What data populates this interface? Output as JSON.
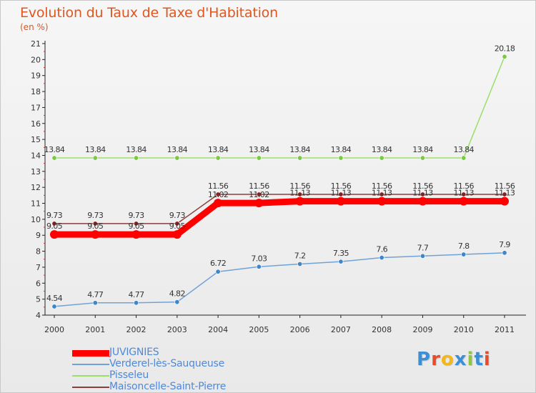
{
  "title": "Evolution du Taux de Taxe d'Habitation",
  "unit": "(en %)",
  "logo": "Proxiti",
  "chart_data": {
    "type": "line",
    "categories": [
      "2000",
      "2001",
      "2002",
      "2003",
      "2004",
      "2005",
      "2006",
      "2007",
      "2008",
      "2009",
      "2010",
      "2011"
    ],
    "ylim": [
      4,
      21
    ],
    "yticks": [
      4,
      5,
      6,
      7,
      8,
      9,
      10,
      11,
      12,
      13,
      14,
      15,
      16,
      17,
      18,
      19,
      20,
      21
    ],
    "grid": false,
    "legend_position": "bottom-left",
    "series": [
      {
        "name": "JUVIGNIES",
        "color": "#ff0000",
        "values": [
          9.05,
          9.05,
          9.05,
          9.05,
          11.02,
          11.02,
          11.13,
          11.13,
          11.13,
          11.13,
          11.13,
          11.13
        ],
        "labels": [
          "9.05",
          "9.05",
          "9.05",
          "9.05",
          "11.02",
          "11.02",
          "11.13",
          "11.13",
          "11.13",
          "11.13",
          "11.13",
          "11.13"
        ]
      },
      {
        "name": "Verderel-lès-Sauqueuse",
        "color": "#6fa3d8",
        "point_color": "#3f85c8",
        "values": [
          4.54,
          4.77,
          4.77,
          4.82,
          6.72,
          7.03,
          7.2,
          7.35,
          7.6,
          7.7,
          7.8,
          7.9
        ],
        "labels": [
          "4.54",
          "4.77",
          "4.77",
          "4.82",
          "6.72",
          "7.03",
          "7.2",
          "7.35",
          "7.6",
          "7.7",
          "7.8",
          "7.9"
        ]
      },
      {
        "name": "Pisseleu",
        "color": "#9cde6a",
        "point_color": "#79c943",
        "values": [
          13.84,
          13.84,
          13.84,
          13.84,
          13.84,
          13.84,
          13.84,
          13.84,
          13.84,
          13.84,
          13.84,
          20.18
        ],
        "labels": [
          "13.84",
          "13.84",
          "13.84",
          "13.84",
          "13.84",
          "13.84",
          "13.84",
          "13.84",
          "13.84",
          "13.84",
          "13.84",
          "20.18"
        ]
      },
      {
        "name": "Maisoncelle-Saint-Pierre",
        "color": "#8b3f3f",
        "point_color": "#8b2020",
        "values": [
          9.73,
          9.73,
          9.73,
          9.73,
          11.56,
          11.56,
          11.56,
          11.56,
          11.56,
          11.56,
          11.56,
          11.56
        ],
        "labels": [
          "9.73",
          "9.73",
          "9.73",
          "9.73",
          "11.56",
          "11.56",
          "11.56",
          "11.56",
          "11.56",
          "11.56",
          "11.56",
          "11.56"
        ]
      }
    ]
  }
}
